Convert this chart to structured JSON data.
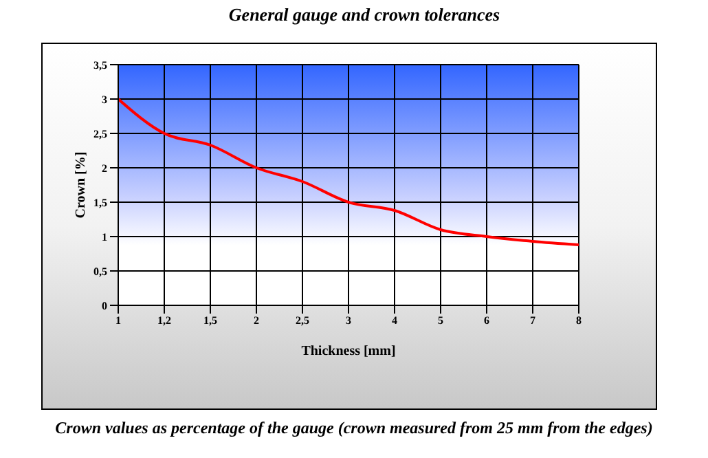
{
  "chart_data": {
    "type": "line",
    "title": "General gauge and crown tolerances",
    "xlabel": "Thickness [mm]",
    "ylabel": "Crown [%]",
    "annotations": [
      "Crown values as percentage of the gauge (crown measured from 25 mm from the edges)"
    ],
    "categories": [
      "1",
      "1,2",
      "1,5",
      "2",
      "2,5",
      "3",
      "4",
      "5",
      "6",
      "7",
      "8"
    ],
    "series": [
      {
        "color": "#ff0000",
        "values": [
          3,
          2.5,
          2.33,
          2,
          1.8,
          1.5,
          1.38,
          1.1,
          1,
          0.93,
          0.88
        ]
      }
    ],
    "ylim": [
      0,
      3.5
    ],
    "yticks": [
      0,
      {
        "value": 0.5,
        "label": "0,5"
      },
      1,
      {
        "value": 1.5,
        "label": "1,5"
      },
      2,
      {
        "value": 2.5,
        "label": "2,5"
      },
      3,
      {
        "value": 3.5,
        "label": "3,5"
      }
    ],
    "grid": true,
    "legend": false,
    "marker": "none",
    "line_style": "solid"
  }
}
